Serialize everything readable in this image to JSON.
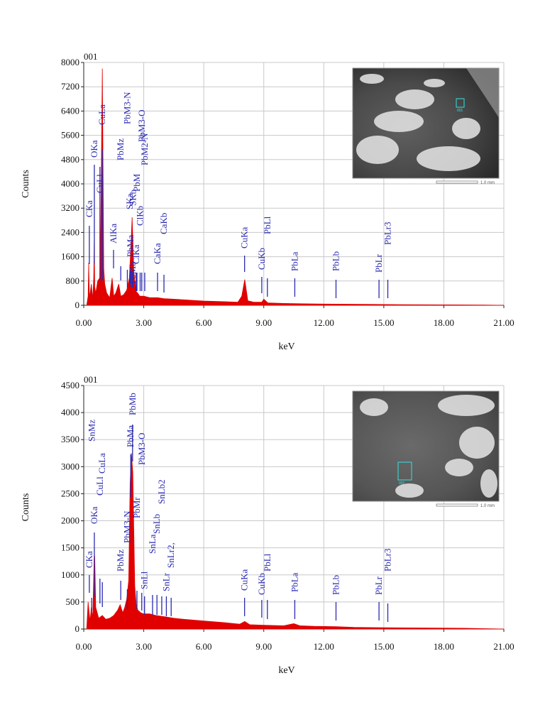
{
  "chart_data": [
    {
      "type": "line",
      "title": "001",
      "xlabel": "keV",
      "ylabel": "Counts",
      "xlim": [
        0,
        21
      ],
      "ylim": [
        0,
        8000
      ],
      "xticks": [
        "0.00",
        "3.00",
        "6.00",
        "9.00",
        "12.00",
        "15.00",
        "18.00",
        "21.00"
      ],
      "yticks": [
        "0",
        "800",
        "1600",
        "2400",
        "3200",
        "4000",
        "4800",
        "5600",
        "6400",
        "7200",
        "8000"
      ],
      "grid": true,
      "spectrum_color": "#e00000",
      "marker_color": "#2b2bb0",
      "inset": {
        "label": "001",
        "scale_text": "1.0 mm"
      },
      "spectrum": {
        "x": [
          0.15,
          0.22,
          0.25,
          0.28,
          0.32,
          0.38,
          0.45,
          0.5,
          0.525,
          0.55,
          0.6,
          0.7,
          0.8,
          0.85,
          0.93,
          1.0,
          1.05,
          1.15,
          1.3,
          1.42,
          1.5,
          1.6,
          1.75,
          1.85,
          2.0,
          2.15,
          2.28,
          2.35,
          2.42,
          2.5,
          2.62,
          2.7,
          2.8,
          3.0,
          3.3,
          3.7,
          4.0,
          4.5,
          5.0,
          6.0,
          7.0,
          7.7,
          7.9,
          8.05,
          8.2,
          8.5,
          8.9,
          9.0,
          9.2,
          10.0,
          11.0,
          12.0,
          14.0,
          16.0,
          18.0,
          20.0,
          21.0
        ],
        "y": [
          0,
          300,
          1400,
          300,
          400,
          700,
          200,
          900,
          2100,
          600,
          400,
          800,
          900,
          2500,
          7800,
          1200,
          700,
          400,
          250,
          900,
          300,
          400,
          700,
          300,
          350,
          500,
          900,
          1800,
          2900,
          1100,
          450,
          400,
          300,
          300,
          250,
          250,
          220,
          200,
          180,
          140,
          120,
          100,
          300,
          850,
          150,
          100,
          100,
          200,
          80,
          60,
          50,
          40,
          30,
          20,
          15,
          10,
          0
        ]
      },
      "peak_labels": [
        {
          "label": "CKa",
          "kev": 0.28,
          "marker": 0
        },
        {
          "label": "OKa",
          "kev": 0.53,
          "marker": 0
        },
        {
          "label": "CuLl",
          "kev": 0.81,
          "marker": 0
        },
        {
          "label": "CuLa",
          "kev": 0.93,
          "marker": 0
        },
        {
          "label": "AlKa",
          "kev": 1.49,
          "marker": 0
        },
        {
          "label": "PbMz",
          "kev": 1.85,
          "marker": 0
        },
        {
          "label": "PbMa",
          "kev": 2.35,
          "marker": 0
        },
        {
          "label": "PbM3-N",
          "kev": 2.18,
          "marker": 0
        },
        {
          "label": "SKa",
          "kev": 2.31,
          "marker": 0
        },
        {
          "label": "PbMb",
          "kev": 2.44,
          "marker": 0
        },
        {
          "label": "SKb",
          "kev": 2.46,
          "marker": 0
        },
        {
          "label": "ClKa",
          "kev": 2.62,
          "marker": 0
        },
        {
          "label": "PbM3-O",
          "kev": 2.9,
          "marker": 0
        },
        {
          "label": "PbM",
          "kev": 2.66,
          "marker": 0
        },
        {
          "label": "PbM2-N",
          "kev": 3.05,
          "marker": 0
        },
        {
          "label": "ClKb",
          "kev": 2.82,
          "marker": 0
        },
        {
          "label": "CaKa",
          "kev": 3.69,
          "marker": 0
        },
        {
          "label": "CaKb",
          "kev": 4.01,
          "marker": 0
        },
        {
          "label": "CuKa",
          "kev": 8.04,
          "marker": 0
        },
        {
          "label": "CuKb",
          "kev": 8.9,
          "marker": 0
        },
        {
          "label": "PbLl",
          "kev": 9.18,
          "marker": 0
        },
        {
          "label": "PbLa",
          "kev": 10.55,
          "marker": 0
        },
        {
          "label": "PbLb",
          "kev": 12.61,
          "marker": 0
        },
        {
          "label": "PbLr",
          "kev": 14.76,
          "marker": 0
        },
        {
          "label": "PbLr3",
          "kev": 15.2,
          "marker": 0
        }
      ]
    },
    {
      "type": "line",
      "title": "001",
      "xlabel": "keV",
      "ylabel": "Counts",
      "xlim": [
        0,
        21
      ],
      "ylim": [
        0,
        4500
      ],
      "xticks": [
        "0.00",
        "3.00",
        "6.00",
        "9.00",
        "12.00",
        "15.00",
        "18.00",
        "21.00"
      ],
      "yticks": [
        "0",
        "500",
        "1000",
        "1500",
        "2000",
        "2500",
        "3000",
        "3500",
        "4000",
        "4500"
      ],
      "grid": true,
      "spectrum_color": "#e00000",
      "marker_color": "#2b2bb0",
      "inset": {
        "label": "001",
        "scale_text": "1.0 mm"
      },
      "spectrum": {
        "x": [
          0.15,
          0.22,
          0.27,
          0.32,
          0.38,
          0.45,
          0.52,
          0.55,
          0.6,
          0.75,
          0.93,
          1.1,
          1.3,
          1.5,
          1.7,
          1.82,
          1.95,
          2.05,
          2.15,
          2.25,
          2.32,
          2.38,
          2.45,
          2.55,
          2.62,
          2.7,
          2.85,
          3.0,
          3.3,
          3.6,
          4.0,
          4.5,
          5.0,
          6.0,
          7.0,
          7.8,
          8.05,
          8.3,
          9.0,
          10.0,
          10.5,
          10.8,
          11.5,
          12.6,
          13.5,
          15.0,
          17.0,
          19.0,
          21.0
        ],
        "y": [
          0,
          500,
          300,
          150,
          400,
          200,
          1300,
          1350,
          400,
          200,
          250,
          180,
          200,
          250,
          350,
          450,
          300,
          400,
          550,
          900,
          2700,
          3250,
          2900,
          800,
          450,
          350,
          300,
          280,
          280,
          250,
          230,
          200,
          180,
          150,
          120,
          90,
          140,
          80,
          70,
          60,
          100,
          60,
          50,
          45,
          30,
          25,
          20,
          15,
          0
        ]
      },
      "peak_labels": [
        {
          "label": "CKa",
          "kev": 0.28,
          "marker": 0
        },
        {
          "label": "SnMz",
          "kev": 0.4,
          "marker": 0
        },
        {
          "label": "OKa",
          "kev": 0.53,
          "marker": 0
        },
        {
          "label": "CuLl",
          "kev": 0.81,
          "marker": 0
        },
        {
          "label": "CuLa",
          "kev": 0.93,
          "marker": 0
        },
        {
          "label": "PbMz",
          "kev": 1.85,
          "marker": 0
        },
        {
          "label": "PbM3-N",
          "kev": 2.18,
          "marker": 0
        },
        {
          "label": "PbMa",
          "kev": 2.35,
          "marker": 0
        },
        {
          "label": "PbMb",
          "kev": 2.44,
          "marker": 0
        },
        {
          "label": "PbMr",
          "kev": 2.66,
          "marker": 0
        },
        {
          "label": "PbM3-O",
          "kev": 2.9,
          "marker": 0
        },
        {
          "label": "SnLl",
          "kev": 3.04,
          "marker": 0
        },
        {
          "label": "SnLa",
          "kev": 3.44,
          "marker": 0
        },
        {
          "label": "SnLb",
          "kev": 3.66,
          "marker": 0
        },
        {
          "label": "SnLr",
          "kev": 4.13,
          "marker": 0
        },
        {
          "label": "SnLb2",
          "kev": 3.9,
          "marker": 0
        },
        {
          "label": "SnLr2,",
          "kev": 4.37,
          "marker": 0
        },
        {
          "label": "CuKa",
          "kev": 8.04,
          "marker": 0
        },
        {
          "label": "CuKb",
          "kev": 8.9,
          "marker": 0
        },
        {
          "label": "PbLl",
          "kev": 9.18,
          "marker": 0
        },
        {
          "label": "PbLa",
          "kev": 10.55,
          "marker": 0
        },
        {
          "label": "PbLb",
          "kev": 12.61,
          "marker": 0
        },
        {
          "label": "PbLr",
          "kev": 14.76,
          "marker": 0
        },
        {
          "label": "PbLr3",
          "kev": 15.2,
          "marker": 0
        }
      ]
    }
  ]
}
